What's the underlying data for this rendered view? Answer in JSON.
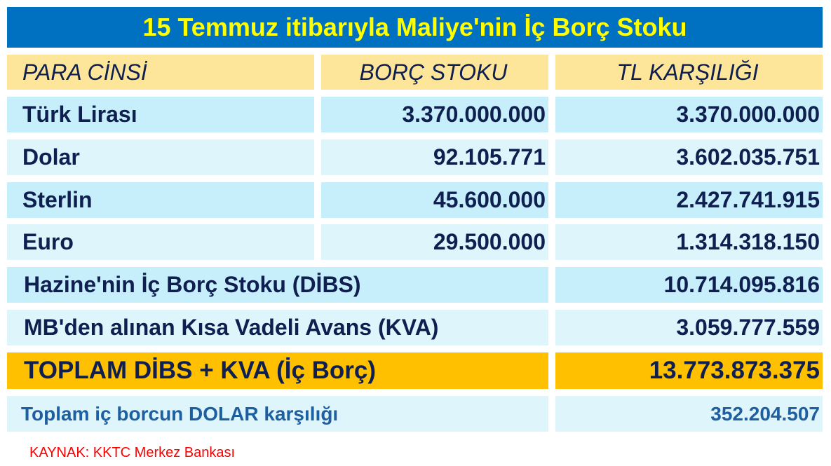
{
  "title": "15 Temmuz itibarıyla Maliye'nin İç Borç Stoku",
  "headers": [
    "PARA CİNSİ",
    "BORÇ STOKU",
    "TL KARŞILIĞI"
  ],
  "rows": [
    {
      "currency": "Türk Lirası",
      "stock": "3.370.000.000",
      "tl": "3.370.000.000"
    },
    {
      "currency": "Dolar",
      "stock": "92.105.771",
      "tl": "3.602.035.751"
    },
    {
      "currency": "Sterlin",
      "stock": "45.600.000",
      "tl": "2.427.741.915"
    },
    {
      "currency": "Euro",
      "stock": "29.500.000",
      "tl": "1.314.318.150"
    }
  ],
  "summary": [
    {
      "label": "Hazine'nin İç Borç Stoku (DİBS)",
      "value": "10.714.095.816"
    },
    {
      "label": "MB'den alınan Kısa Vadeli Avans (KVA)",
      "value": "3.059.777.559"
    },
    {
      "label": "TOPLAM DİBS + KVA (İç Borç)",
      "value": "13.773.873.375"
    },
    {
      "label": "Toplam iç borcun DOLAR karşılığı",
      "value": "352.204.507"
    }
  ],
  "source": "KAYNAK: KKTC Merkez Bankası",
  "colors": {
    "title_bg": "#0070c0",
    "title_text": "#ffff00",
    "header_bg": "#fde59a",
    "total_bg": "#ffc000",
    "source_text": "#ff0000"
  }
}
